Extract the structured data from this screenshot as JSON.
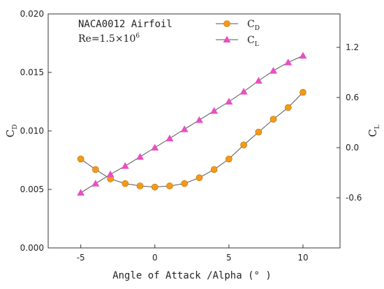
{
  "chart_data": {
    "type": "line",
    "annotation": {
      "line1": "NACA0012 Airfoil",
      "line2_prefix": "Re=1.5×10",
      "line2_exp": "6"
    },
    "xlabel": "Angle of Attack /Alpha (° )",
    "ylabel_left": {
      "main": "C",
      "sub": "D"
    },
    "ylabel_right": {
      "main": "C",
      "sub": "L"
    },
    "xlim": [
      -7.2,
      12.5
    ],
    "ylim_left": [
      0.0,
      0.02
    ],
    "ylim_right": [
      -1.2,
      1.6
    ],
    "x_ticks": [
      "-5",
      "0",
      "5",
      "10"
    ],
    "y_left_ticks": [
      "0.000",
      "0.005",
      "0.010",
      "0.015",
      "0.020"
    ],
    "y_right_ticks": [
      "-0.6",
      "0.0",
      "0.6",
      "1.2"
    ],
    "x": [
      -5,
      -4,
      -3,
      -2,
      -1,
      0,
      1,
      2,
      3,
      4,
      5,
      6,
      7,
      8,
      9,
      10
    ],
    "series": [
      {
        "name": "C_D",
        "legend_main": "C",
        "legend_sub": "D",
        "axis": "left",
        "marker": "circle",
        "color": "#f59a18",
        "values": [
          0.0076,
          0.0067,
          0.0059,
          0.0055,
          0.0053,
          0.0052,
          0.0053,
          0.0055,
          0.006,
          0.0067,
          0.0076,
          0.0088,
          0.0099,
          0.011,
          0.012,
          0.0133
        ]
      },
      {
        "name": "C_L",
        "legend_main": "C",
        "legend_sub": "L",
        "axis": "right",
        "marker": "triangle",
        "color": "#e84fc2",
        "values": [
          -0.54,
          -0.43,
          -0.32,
          -0.22,
          -0.11,
          0.0,
          0.11,
          0.22,
          0.33,
          0.44,
          0.55,
          0.67,
          0.8,
          0.92,
          1.02,
          1.1
        ]
      }
    ],
    "grid": false,
    "legend_position": "top-center"
  }
}
